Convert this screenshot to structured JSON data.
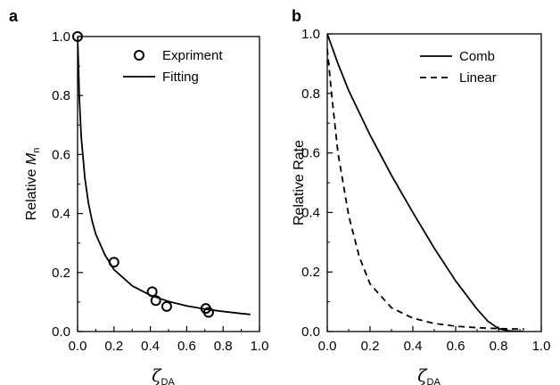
{
  "chart_data": [
    {
      "panel_label": "a",
      "type": "scatter",
      "xlabel": {
        "symbol": "ζ",
        "subscript": "DA"
      },
      "ylabel": {
        "text": "Relative ",
        "symbol": "M",
        "subscript": "n"
      },
      "xlim": [
        0.0,
        1.0
      ],
      "ylim": [
        0.0,
        1.0
      ],
      "xticks": [
        "0.0",
        "0.2",
        "0.4",
        "0.6",
        "0.8",
        "1.0"
      ],
      "yticks": [
        "0.0",
        "0.2",
        "0.4",
        "0.6",
        "0.8",
        "1.0"
      ],
      "grid": false,
      "legend_position": "top-right",
      "series": [
        {
          "name": "Expriment",
          "kind": "markers",
          "marker": "open-circle",
          "points": [
            [
              0.0,
              1.0
            ],
            [
              0.2,
              0.235
            ],
            [
              0.41,
              0.135
            ],
            [
              0.43,
              0.105
            ],
            [
              0.49,
              0.085
            ],
            [
              0.705,
              0.078
            ],
            [
              0.72,
              0.065
            ]
          ]
        },
        {
          "name": "Fitting",
          "kind": "line",
          "style": "solid",
          "points": [
            [
              0.0,
              1.0
            ],
            [
              0.005,
              0.9
            ],
            [
              0.01,
              0.79
            ],
            [
              0.02,
              0.66
            ],
            [
              0.04,
              0.52
            ],
            [
              0.06,
              0.435
            ],
            [
              0.08,
              0.375
            ],
            [
              0.1,
              0.33
            ],
            [
              0.15,
              0.26
            ],
            [
              0.2,
              0.21
            ],
            [
              0.3,
              0.155
            ],
            [
              0.4,
              0.123
            ],
            [
              0.5,
              0.102
            ],
            [
              0.6,
              0.087
            ],
            [
              0.7,
              0.076
            ],
            [
              0.8,
              0.068
            ],
            [
              0.9,
              0.061
            ],
            [
              0.95,
              0.058
            ]
          ]
        }
      ]
    },
    {
      "panel_label": "b",
      "type": "line",
      "xlabel": {
        "symbol": "ζ",
        "subscript": "DA"
      },
      "ylabel": {
        "text": "Relative Rate"
      },
      "xlim": [
        0.0,
        1.0
      ],
      "ylim": [
        0.0,
        1.0
      ],
      "xticks": [
        "0.0",
        "0.2",
        "0.4",
        "0.6",
        "0.8",
        "1.0"
      ],
      "yticks": [
        "0.0",
        "0.2",
        "0.4",
        "0.6",
        "0.8",
        "1.0"
      ],
      "grid": false,
      "legend_position": "top-right",
      "series": [
        {
          "name": "Comb",
          "kind": "line",
          "style": "solid",
          "points": [
            [
              0.0,
              1.0
            ],
            [
              0.05,
              0.9
            ],
            [
              0.1,
              0.81
            ],
            [
              0.2,
              0.66
            ],
            [
              0.3,
              0.525
            ],
            [
              0.4,
              0.4
            ],
            [
              0.5,
              0.28
            ],
            [
              0.6,
              0.17
            ],
            [
              0.7,
              0.075
            ],
            [
              0.75,
              0.035
            ],
            [
              0.8,
              0.01
            ],
            [
              0.85,
              0.002
            ],
            [
              0.92,
              0.0
            ]
          ]
        },
        {
          "name": "Linear",
          "kind": "line",
          "style": "dashed",
          "points": [
            [
              0.0,
              0.95
            ],
            [
              0.02,
              0.8
            ],
            [
              0.05,
              0.6
            ],
            [
              0.1,
              0.39
            ],
            [
              0.15,
              0.25
            ],
            [
              0.2,
              0.16
            ],
            [
              0.3,
              0.08
            ],
            [
              0.4,
              0.045
            ],
            [
              0.5,
              0.027
            ],
            [
              0.6,
              0.018
            ],
            [
              0.7,
              0.013
            ],
            [
              0.8,
              0.01
            ],
            [
              0.92,
              0.008
            ]
          ]
        }
      ]
    }
  ]
}
